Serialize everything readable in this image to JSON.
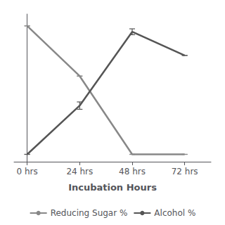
{
  "chart_data": {
    "type": "line",
    "xlabel": "Incubation Hours",
    "x": [
      0,
      24,
      48,
      72
    ],
    "xlim": [
      -6,
      84
    ],
    "xticks": [
      {
        "value": 0,
        "label": "0 hrs"
      },
      {
        "value": 24,
        "label": "24 hrs"
      },
      {
        "value": 48,
        "label": "48 hrs"
      },
      {
        "value": 72,
        "label": "72 hrs"
      }
    ],
    "ylim": [
      0,
      100
    ],
    "grid": false,
    "tick_labels": "x",
    "legend": "bottom",
    "series": [
      {
        "name": "Reducing Sugar %",
        "color": "#888888",
        "values": [
          92,
          58,
          5,
          5
        ],
        "errors": [
          0,
          0,
          0,
          0
        ]
      },
      {
        "name": "Alcohol %",
        "color": "#555555",
        "values": [
          5,
          38,
          88,
          72
        ],
        "errors": [
          0,
          2.5,
          2,
          0
        ]
      }
    ]
  }
}
